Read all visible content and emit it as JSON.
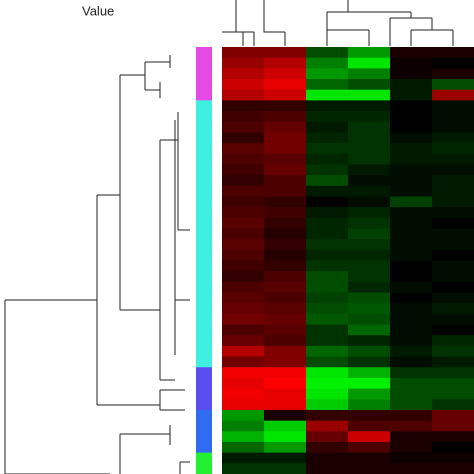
{
  "chart_data": {
    "type": "heatmap",
    "title": "Value",
    "colorscale": {
      "low": "#00ff00",
      "mid": "#000000",
      "high": "#ff0000"
    },
    "zlim": [
      -1,
      1
    ],
    "row_colors": [
      "#e44be4",
      "#e44be4",
      "#e44be4",
      "#e44be4",
      "#e44be4",
      "#3ff0e0",
      "#3ff0e0",
      "#3ff0e0",
      "#3ff0e0",
      "#3ff0e0",
      "#3ff0e0",
      "#3ff0e0",
      "#3ff0e0",
      "#3ff0e0",
      "#3ff0e0",
      "#3ff0e0",
      "#3ff0e0",
      "#3ff0e0",
      "#3ff0e0",
      "#3ff0e0",
      "#3ff0e0",
      "#3ff0e0",
      "#3ff0e0",
      "#3ff0e0",
      "#3ff0e0",
      "#3ff0e0",
      "#3ff0e0",
      "#3ff0e0",
      "#3ff0e0",
      "#3ff0e0",
      "#5a4ef0",
      "#5a4ef0",
      "#5a4ef0",
      "#5a4ef0",
      "#2f6cf2",
      "#2f6cf2",
      "#2f6cf2",
      "#2f6cf2",
      "#22f030",
      "#22f030"
    ],
    "values": [
      [
        0.5,
        0.5,
        -0.3,
        -0.6,
        0.1,
        0.1
      ],
      [
        0.6,
        0.7,
        -0.5,
        -0.9,
        0.05,
        0
      ],
      [
        0.7,
        0.8,
        -0.6,
        -0.5,
        0.05,
        0.1
      ],
      [
        0.8,
        0.9,
        -0.4,
        -0.3,
        -0.1,
        -0.3
      ],
      [
        0.7,
        0.8,
        -0.9,
        -0.9,
        -0.1,
        0.6
      ],
      [
        0.2,
        0.2,
        -0.1,
        -0.1,
        0,
        -0.05
      ],
      [
        0.25,
        0.3,
        -0.15,
        -0.15,
        0,
        -0.05
      ],
      [
        0.3,
        0.4,
        -0.1,
        -0.2,
        0,
        -0.05
      ],
      [
        0.2,
        0.45,
        -0.15,
        -0.2,
        -0.05,
        -0.1
      ],
      [
        0.35,
        0.45,
        -0.2,
        -0.2,
        -0.1,
        -0.15
      ],
      [
        0.3,
        0.35,
        -0.15,
        -0.2,
        -0.1,
        -0.1
      ],
      [
        0.25,
        0.4,
        -0.2,
        -0.1,
        -0.05,
        -0.05
      ],
      [
        0.2,
        0.3,
        -0.3,
        -0.05,
        -0.05,
        -0.1
      ],
      [
        0.3,
        0.3,
        -0.1,
        -0.1,
        -0.05,
        -0.1
      ],
      [
        0.25,
        0.2,
        0,
        -0.05,
        -0.25,
        -0.1
      ],
      [
        0.3,
        0.25,
        -0.1,
        -0.15,
        -0.05,
        -0.05
      ],
      [
        0.35,
        0.2,
        -0.15,
        -0.2,
        -0.05,
        0
      ],
      [
        0.3,
        0.15,
        -0.15,
        -0.25,
        -0.05,
        -0.05
      ],
      [
        0.35,
        0.2,
        -0.2,
        -0.2,
        -0.05,
        -0.05
      ],
      [
        0.3,
        0.15,
        -0.15,
        -0.15,
        -0.05,
        0
      ],
      [
        0.25,
        0.2,
        -0.2,
        -0.2,
        0,
        -0.05
      ],
      [
        0.2,
        0.3,
        -0.3,
        -0.2,
        0,
        -0.05
      ],
      [
        0.3,
        0.35,
        -0.3,
        -0.15,
        -0.05,
        0
      ],
      [
        0.35,
        0.3,
        -0.25,
        -0.3,
        0,
        -0.05
      ],
      [
        0.4,
        0.35,
        -0.3,
        -0.35,
        -0.05,
        -0.1
      ],
      [
        0.45,
        0.4,
        -0.35,
        -0.3,
        -0.05,
        -0.05
      ],
      [
        0.3,
        0.35,
        -0.2,
        -0.4,
        -0.05,
        0
      ],
      [
        0.4,
        0.3,
        -0.2,
        -0.15,
        -0.05,
        -0.15
      ],
      [
        0.7,
        0.5,
        -0.4,
        -0.3,
        -0.1,
        -0.2
      ],
      [
        0.45,
        0.5,
        -0.3,
        -0.2,
        -0.05,
        -0.1
      ],
      [
        0.95,
        0.95,
        -0.9,
        -0.7,
        -0.2,
        -0.2
      ],
      [
        0.9,
        1,
        -0.95,
        -0.95,
        -0.3,
        -0.3
      ],
      [
        0.95,
        0.9,
        -0.9,
        -0.6,
        -0.3,
        -0.3
      ],
      [
        0.9,
        0.9,
        -0.8,
        -0.5,
        -0.3,
        -0.2
      ],
      [
        -0.6,
        0.1,
        0.2,
        0.2,
        0.2,
        0.4
      ],
      [
        -0.5,
        -0.8,
        0.6,
        0.3,
        0.3,
        0.4
      ],
      [
        -0.7,
        -0.9,
        0.4,
        0.8,
        0.1,
        0.1
      ],
      [
        -0.4,
        -0.6,
        0.2,
        0.3,
        0.1,
        0
      ],
      [
        -0.1,
        -0.1,
        0.1,
        0.1,
        0.05,
        0.05
      ],
      [
        -0.2,
        -0.2,
        0.1,
        0.1,
        0.1,
        0.1
      ]
    ]
  }
}
